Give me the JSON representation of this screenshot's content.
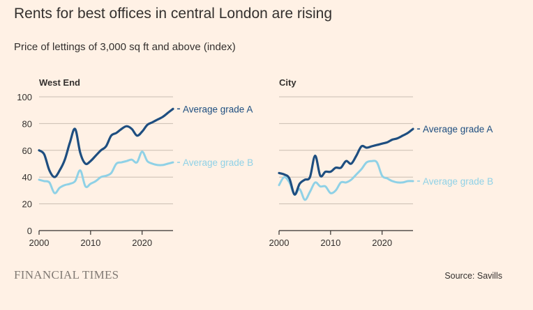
{
  "title": "Rents for best offices in central London are rising",
  "subtitle": "Price of lettings of 3,000 sq ft and above (index)",
  "footer": {
    "brand": "FINANCIAL TIMES",
    "source": "Source: Savills"
  },
  "colors": {
    "grade_a": "#1e4e80",
    "grade_b": "#8fd1e6",
    "background": "#fff1e5"
  },
  "chart_data": [
    {
      "type": "line",
      "title": "West End",
      "xlim": [
        2000,
        2026
      ],
      "ylim": [
        0,
        100
      ],
      "xticks": [
        2000,
        2010,
        2020
      ],
      "yticks": [
        0,
        20,
        40,
        60,
        80,
        100
      ],
      "series": [
        {
          "name": "Average grade A",
          "color": "#1e4e80",
          "points": [
            [
              2000,
              60
            ],
            [
              2001,
              57
            ],
            [
              2002,
              45
            ],
            [
              2003,
              40
            ],
            [
              2004,
              45
            ],
            [
              2005,
              53
            ],
            [
              2006,
              66
            ],
            [
              2007,
              76
            ],
            [
              2008,
              58
            ],
            [
              2009,
              50
            ],
            [
              2010,
              52
            ],
            [
              2011,
              56
            ],
            [
              2012,
              60
            ],
            [
              2013,
              63
            ],
            [
              2014,
              71
            ],
            [
              2015,
              73
            ],
            [
              2016,
              76
            ],
            [
              2017,
              78
            ],
            [
              2018,
              76
            ],
            [
              2019,
              71
            ],
            [
              2020,
              74
            ],
            [
              2021,
              79
            ],
            [
              2022,
              81
            ],
            [
              2023,
              83
            ],
            [
              2024,
              85
            ],
            [
              2025,
              88
            ],
            [
              2026,
              91
            ]
          ]
        },
        {
          "name": "Average grade B",
          "color": "#8fd1e6",
          "points": [
            [
              2000,
              38
            ],
            [
              2001,
              37
            ],
            [
              2002,
              36
            ],
            [
              2003,
              28
            ],
            [
              2004,
              32
            ],
            [
              2005,
              34
            ],
            [
              2006,
              35
            ],
            [
              2007,
              37
            ],
            [
              2008,
              45
            ],
            [
              2009,
              33
            ],
            [
              2010,
              35
            ],
            [
              2011,
              37
            ],
            [
              2012,
              40
            ],
            [
              2013,
              41
            ],
            [
              2014,
              43
            ],
            [
              2015,
              50
            ],
            [
              2016,
              51
            ],
            [
              2017,
              52
            ],
            [
              2018,
              53
            ],
            [
              2019,
              51
            ],
            [
              2020,
              59
            ],
            [
              2021,
              52
            ],
            [
              2022,
              50
            ],
            [
              2023,
              49
            ],
            [
              2024,
              49
            ],
            [
              2025,
              50
            ],
            [
              2026,
              51
            ]
          ]
        }
      ]
    },
    {
      "type": "line",
      "title": "City",
      "xlim": [
        2000,
        2026
      ],
      "ylim": [
        0,
        100
      ],
      "xticks": [
        2000,
        2010,
        2020
      ],
      "yticks": [
        0,
        20,
        40,
        60,
        80,
        100
      ],
      "series": [
        {
          "name": "Average grade A",
          "color": "#1e4e80",
          "points": [
            [
              2000,
              43
            ],
            [
              2001,
              42
            ],
            [
              2002,
              39
            ],
            [
              2003,
              27
            ],
            [
              2004,
              35
            ],
            [
              2005,
              38
            ],
            [
              2006,
              40
            ],
            [
              2007,
              56
            ],
            [
              2008,
              41
            ],
            [
              2009,
              44
            ],
            [
              2010,
              44
            ],
            [
              2011,
              47
            ],
            [
              2012,
              47
            ],
            [
              2013,
              52
            ],
            [
              2014,
              50
            ],
            [
              2015,
              56
            ],
            [
              2016,
              63
            ],
            [
              2017,
              62
            ],
            [
              2018,
              63
            ],
            [
              2019,
              64
            ],
            [
              2020,
              65
            ],
            [
              2021,
              66
            ],
            [
              2022,
              68
            ],
            [
              2023,
              69
            ],
            [
              2024,
              71
            ],
            [
              2025,
              73
            ],
            [
              2026,
              76
            ]
          ]
        },
        {
          "name": "Average grade B",
          "color": "#8fd1e6",
          "points": [
            [
              2000,
              34
            ],
            [
              2001,
              40
            ],
            [
              2002,
              36
            ],
            [
              2003,
              27
            ],
            [
              2004,
              31
            ],
            [
              2005,
              23
            ],
            [
              2006,
              29
            ],
            [
              2007,
              36
            ],
            [
              2008,
              33
            ],
            [
              2009,
              33
            ],
            [
              2010,
              28
            ],
            [
              2011,
              30
            ],
            [
              2012,
              36
            ],
            [
              2013,
              36
            ],
            [
              2014,
              38
            ],
            [
              2015,
              42
            ],
            [
              2016,
              46
            ],
            [
              2017,
              51
            ],
            [
              2018,
              52
            ],
            [
              2019,
              51
            ],
            [
              2020,
              41
            ],
            [
              2021,
              39
            ],
            [
              2022,
              37
            ],
            [
              2023,
              36
            ],
            [
              2024,
              36
            ],
            [
              2025,
              37
            ],
            [
              2026,
              37
            ]
          ]
        }
      ]
    }
  ]
}
